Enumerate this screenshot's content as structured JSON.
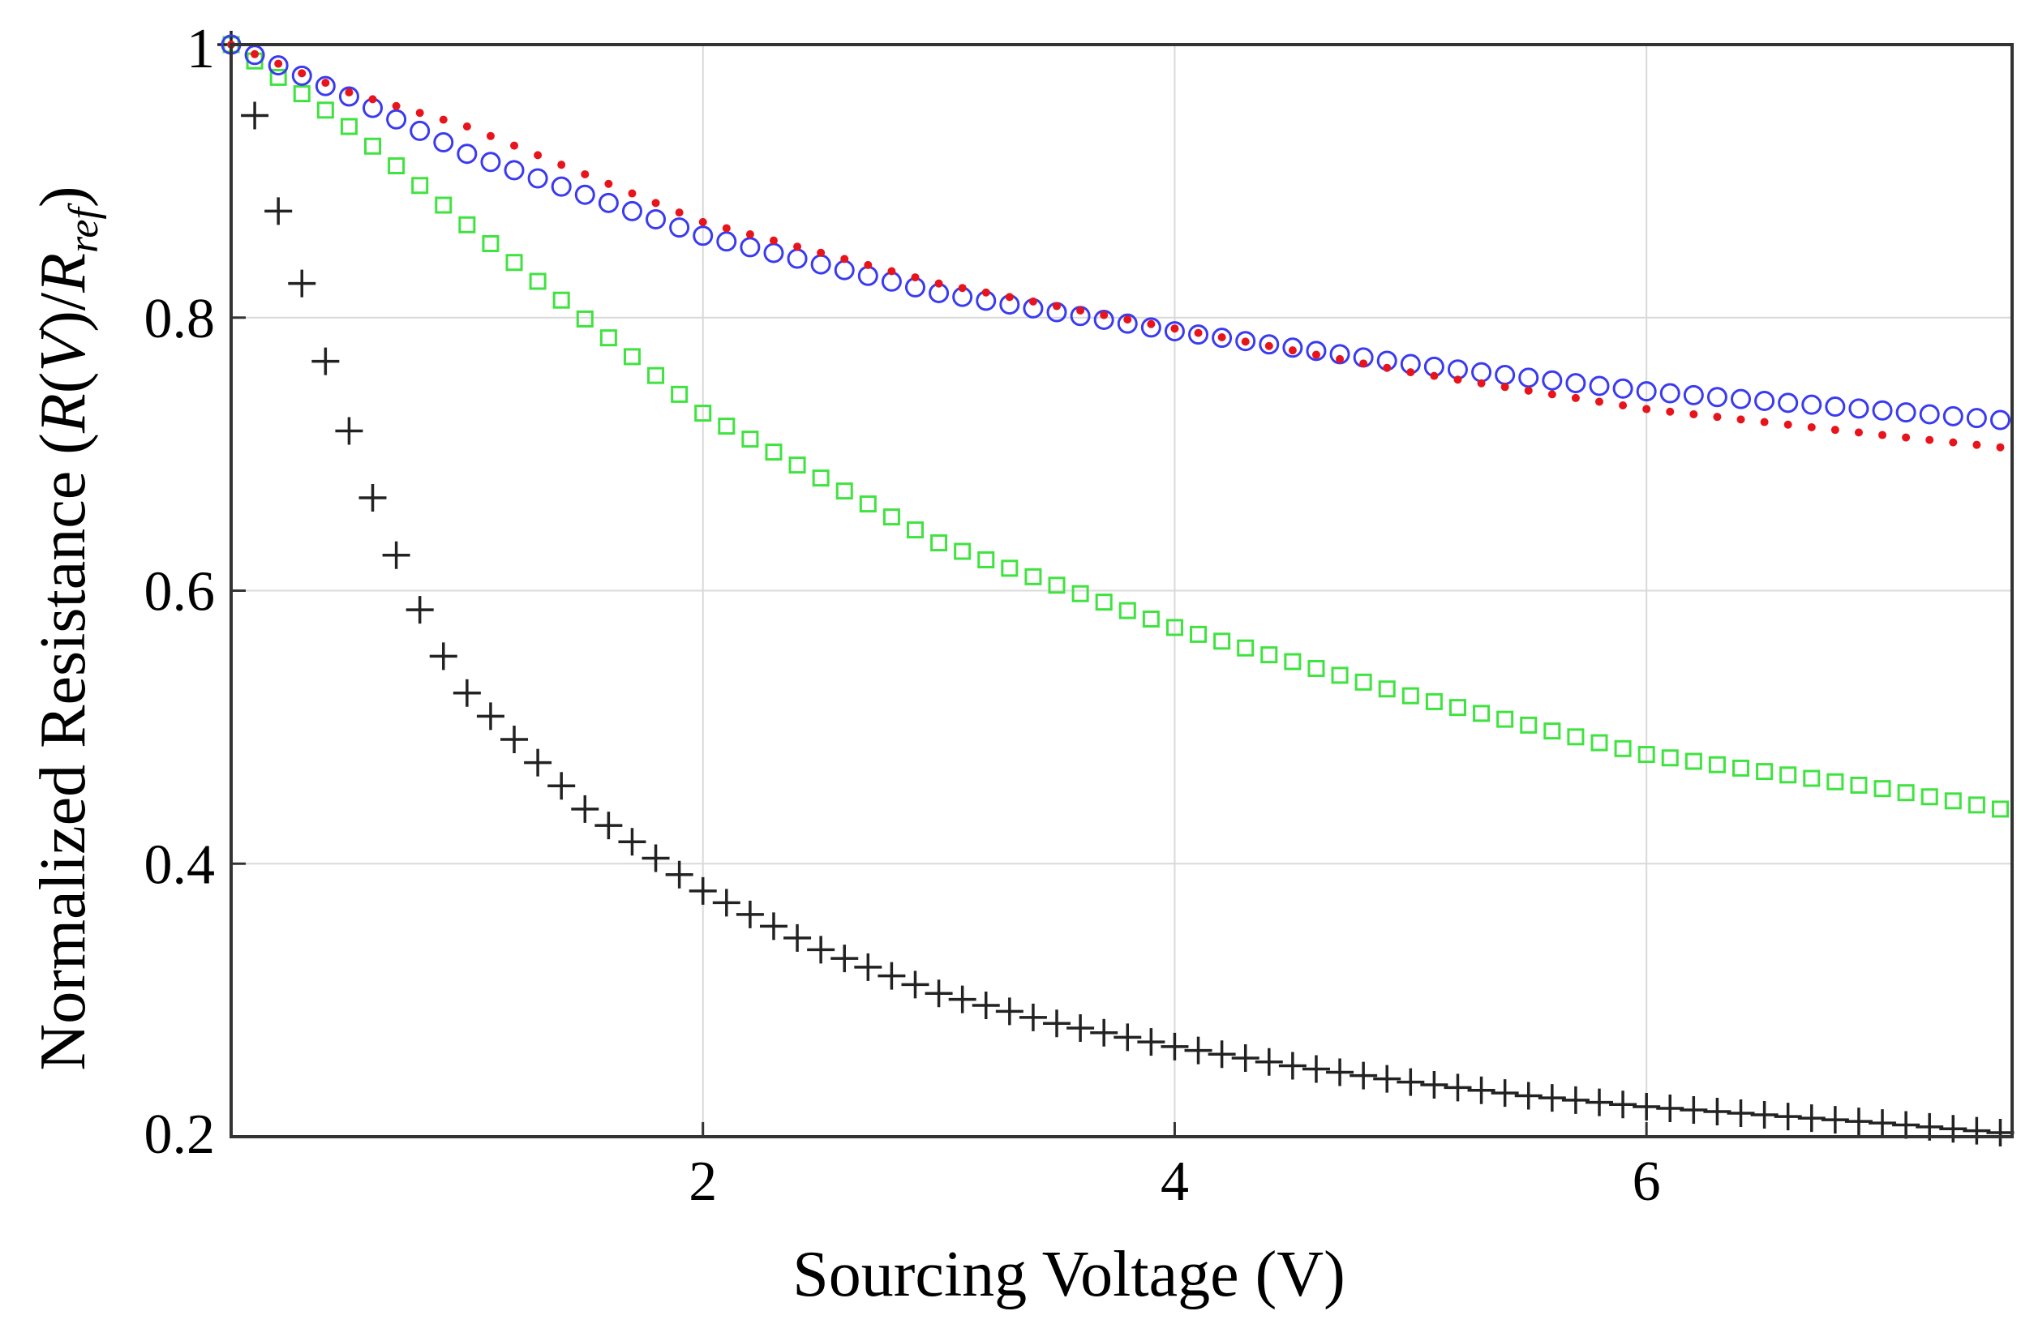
{
  "chart_data": {
    "type": "scatter",
    "title": "",
    "xlabel": "Sourcing Voltage (V)",
    "ylabel": {
      "prefix": "Normalized Resistance (",
      "R1": "R",
      "open1": "(",
      "V": "V",
      "close1": ")/",
      "R2": "R",
      "sub": "ref",
      "suffix": ")"
    },
    "xlim": [
      0,
      7.55
    ],
    "ylim": [
      0.2,
      1.0
    ],
    "xticks": [
      {
        "value": 2,
        "label": "2"
      },
      {
        "value": 4,
        "label": "4"
      },
      {
        "value": 6,
        "label": "6"
      }
    ],
    "yticks": [
      {
        "value": 0.2,
        "label": "0.2"
      },
      {
        "value": 0.4,
        "label": "0.4"
      },
      {
        "value": 0.6,
        "label": "0.6"
      },
      {
        "value": 0.8,
        "label": "0.8"
      },
      {
        "value": 1.0,
        "label": "1"
      }
    ],
    "grid": true,
    "x": {
      "start": 0,
      "end": 7.5,
      "step": 0.1
    },
    "series": [
      {
        "name": "red-dots",
        "marker": "dot",
        "color": "#e8141c",
        "values_at_x": {
          "0": 1.0,
          "0.5": 0.965,
          "1": 0.94,
          "2": 0.87,
          "3": 0.825,
          "4": 0.792,
          "5": 0.76,
          "6": 0.733,
          "7": 0.714,
          "7.5": 0.705
        }
      },
      {
        "name": "blue-circles",
        "marker": "circle",
        "color": "#3a3af0",
        "values_at_x": {
          "0": 1.0,
          "0.5": 0.962,
          "1": 0.92,
          "2": 0.86,
          "3": 0.818,
          "4": 0.79,
          "5": 0.766,
          "6": 0.746,
          "7": 0.732,
          "7.5": 0.725
        }
      },
      {
        "name": "green-squares",
        "marker": "square",
        "color": "#3fe33f",
        "values_at_x": {
          "0": 1.0,
          "0.5": 0.94,
          "1": 0.868,
          "2": 0.73,
          "3": 0.635,
          "4": 0.573,
          "5": 0.523,
          "6": 0.48,
          "7": 0.455,
          "7.5": 0.44
        }
      },
      {
        "name": "black-plus",
        "marker": "plus",
        "color": "#222222",
        "values_at_x": {
          "0": 1.0,
          "0.1": 0.948,
          "0.2": 0.878,
          "0.3": 0.825,
          "0.4": 0.768,
          "0.5": 0.717,
          "0.6": 0.668,
          "0.7": 0.626,
          "0.8": 0.586,
          "0.9": 0.552,
          "1": 0.525,
          "1.5": 0.44,
          "2": 0.38,
          "2.5": 0.337,
          "3": 0.305,
          "3.5": 0.283,
          "4": 0.266,
          "4.5": 0.252,
          "5": 0.24,
          "5.5": 0.23,
          "6": 0.222,
          "6.5": 0.216,
          "7": 0.21,
          "7.5": 0.203
        }
      }
    ]
  }
}
